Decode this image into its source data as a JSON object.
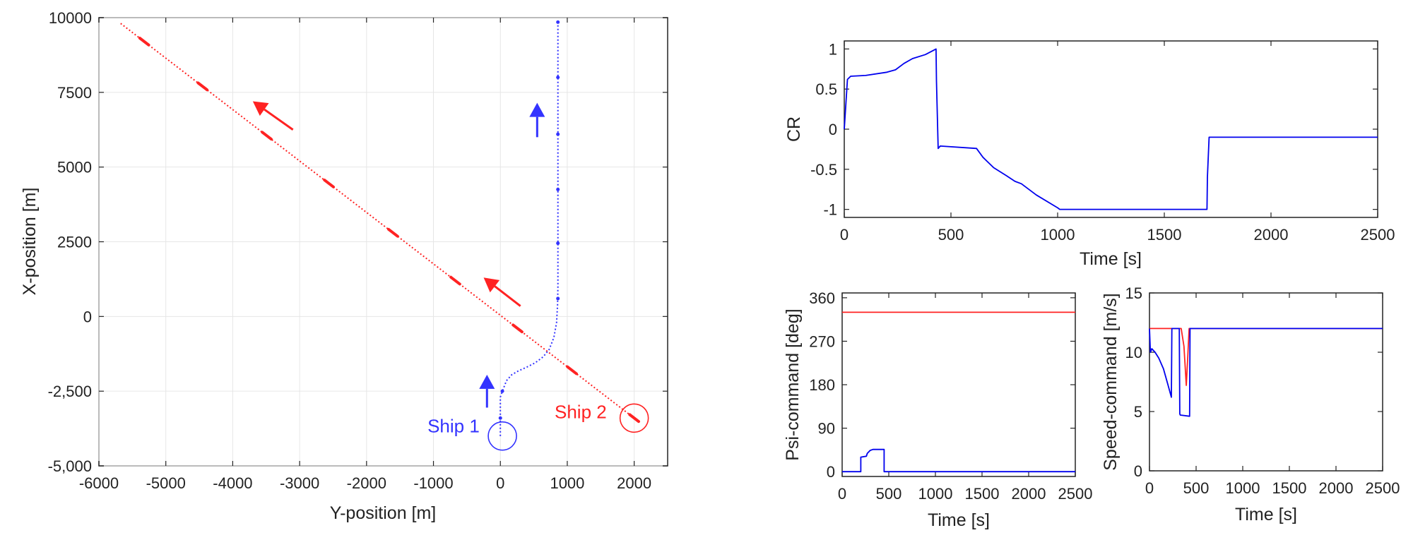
{
  "chart_data": [
    {
      "id": "trajectory",
      "type": "line",
      "title": "",
      "xlabel": "Y-position [m]",
      "ylabel": "X-position [m]",
      "xlim": [
        -6000,
        2500
      ],
      "ylim": [
        -5000,
        10000
      ],
      "xticks": [
        -6000,
        -5000,
        -4000,
        -3000,
        -2000,
        -1000,
        0,
        1000,
        2000
      ],
      "xtick_labels": [
        "-6000",
        "-5000",
        "-4000",
        "-3000",
        "-2000",
        "-1000",
        "0",
        "1000",
        "2000"
      ],
      "yticks": [
        -5000,
        -2500,
        0,
        2500,
        5000,
        7500,
        10000
      ],
      "ytick_labels": [
        "-5,000",
        "-2,500",
        "0",
        "2500",
        "5000",
        "7500",
        "10000"
      ],
      "series": [
        {
          "name": "Ship 1",
          "color": "#3333ff",
          "style": "dotted",
          "x": [
            0,
            0,
            0,
            30,
            90,
            170,
            270,
            390,
            520,
            640,
            730,
            800,
            840,
            855,
            860,
            860,
            860,
            860,
            860,
            860
          ],
          "y": [
            -4000,
            -3400,
            -2700,
            -2500,
            -2150,
            -1950,
            -1820,
            -1700,
            -1550,
            -1350,
            -1100,
            -700,
            -200,
            400,
            1000,
            2500,
            4200,
            6100,
            8000,
            9850
          ],
          "markers_x": [
            0,
            30,
            860,
            860,
            860,
            860,
            860,
            860
          ],
          "markers_y": [
            -3400,
            -2500,
            600,
            2450,
            4250,
            6100,
            8000,
            9850
          ]
        },
        {
          "name": "Ship 2",
          "color": "#ff2222",
          "style": "dotted",
          "x": [
            2000,
            -5700
          ],
          "y": [
            -3400,
            9850
          ],
          "dash_y": [
            -3400,
            -1800,
            -400,
            1200,
            2800,
            4450,
            6050,
            7700,
            9200
          ]
        }
      ],
      "arrows": [
        {
          "color": "#ff2222",
          "x": [
            -3100,
            -3700
          ],
          "y": [
            6250,
            7200
          ]
        },
        {
          "color": "#ff2222",
          "x": [
            300,
            -250
          ],
          "y": [
            350,
            1300
          ]
        },
        {
          "color": "#3333ff",
          "x": [
            550,
            550
          ],
          "y": [
            6000,
            7150
          ]
        },
        {
          "color": "#3333ff",
          "x": [
            -200,
            -200
          ],
          "y": [
            -3050,
            -1950
          ]
        }
      ],
      "circles": [
        {
          "name": "Ship 1",
          "color": "#3333ff",
          "x": 30,
          "y": -4000
        },
        {
          "name": "Ship 2",
          "color": "#ff2222",
          "x": 2000,
          "y": -3400
        }
      ],
      "annotations": [
        {
          "text": "Ship 1",
          "color": "#3333ff",
          "x": -700,
          "y": -3880
        },
        {
          "text": "Ship 2",
          "color": "#ff2222",
          "x": 1200,
          "y": -3400
        }
      ]
    },
    {
      "id": "cr",
      "type": "line",
      "title": "",
      "xlabel": "Time [s]",
      "ylabel": "CR",
      "xlim": [
        0,
        2500
      ],
      "ylim": [
        -1.1,
        1.1
      ],
      "xticks": [
        0,
        500,
        1000,
        1500,
        2000,
        2500
      ],
      "xtick_labels": [
        "0",
        "500",
        "1000",
        "1500",
        "2000",
        "2500"
      ],
      "yticks": [
        -1,
        -0.5,
        0,
        0.5,
        1
      ],
      "ytick_labels": [
        "-1",
        "-0.5",
        "0",
        "0.5",
        "1"
      ],
      "series": [
        {
          "name": "CR",
          "color": "#0000ee",
          "x": [
            0,
            15,
            30,
            100,
            200,
            240,
            280,
            320,
            380,
            430,
            432,
            440,
            450,
            620,
            650,
            700,
            760,
            800,
            830,
            900,
            1000,
            1010,
            1500,
            1700,
            1702,
            1710,
            2500
          ],
          "y": [
            0,
            0.62,
            0.66,
            0.67,
            0.71,
            0.74,
            0.82,
            0.88,
            0.93,
            1.0,
            0.6,
            -0.24,
            -0.21,
            -0.24,
            -0.35,
            -0.48,
            -0.58,
            -0.65,
            -0.68,
            -0.82,
            -0.98,
            -1.0,
            -1.0,
            -1.0,
            -0.6,
            -0.1,
            -0.1
          ]
        }
      ]
    },
    {
      "id": "psi",
      "type": "line",
      "title": "",
      "xlabel": "Time [s]",
      "ylabel": "Psi-command [deg]",
      "xlim": [
        0,
        2500
      ],
      "ylim": [
        -10,
        370
      ],
      "xticks": [
        0,
        500,
        1000,
        1500,
        2000,
        2500
      ],
      "xtick_labels": [
        "0",
        "500",
        "1000",
        "1500",
        "2000",
        "2500"
      ],
      "yticks": [
        0,
        90,
        180,
        270,
        360
      ],
      "ytick_labels": [
        "0",
        "90",
        "180",
        "270",
        "360"
      ],
      "series": [
        {
          "name": "Ship 2",
          "color": "#ff2222",
          "x": [
            0,
            2500
          ],
          "y": [
            330,
            330
          ]
        },
        {
          "name": "Ship 1",
          "color": "#0000ee",
          "x": [
            0,
            200,
            200,
            260,
            270,
            300,
            330,
            450,
            450,
            460,
            2500
          ],
          "y": [
            0,
            0,
            30,
            32,
            38,
            44,
            46,
            46,
            0,
            0,
            0
          ]
        }
      ]
    },
    {
      "id": "speed",
      "type": "line",
      "title": "",
      "xlabel": "Time [s]",
      "ylabel": "Speed-command [m/s]",
      "xlim": [
        0,
        2500
      ],
      "ylim": [
        0,
        15
      ],
      "xticks": [
        0,
        500,
        1000,
        1500,
        2000,
        2500
      ],
      "xtick_labels": [
        "0",
        "500",
        "1000",
        "1500",
        "2000",
        "2500"
      ],
      "yticks": [
        0,
        5,
        10,
        15
      ],
      "ytick_labels": [
        "0",
        "5",
        "10",
        "15"
      ],
      "series": [
        {
          "name": "Ship 2",
          "color": "#ff2222",
          "x": [
            0,
            340,
            370,
            395,
            410,
            425,
            460,
            2500
          ],
          "y": [
            12,
            12,
            10.5,
            7.2,
            9.5,
            12,
            12,
            12
          ]
        },
        {
          "name": "Ship 1",
          "color": "#0000ee",
          "x": [
            0,
            10,
            25,
            60,
            100,
            150,
            200,
            235,
            240,
            320,
            325,
            330,
            430,
            435,
            445,
            2500
          ],
          "y": [
            12,
            10,
            10.3,
            10.0,
            9.5,
            8.6,
            7.2,
            6.2,
            12,
            12,
            4.8,
            4.7,
            4.6,
            12,
            12,
            12
          ]
        }
      ]
    }
  ]
}
